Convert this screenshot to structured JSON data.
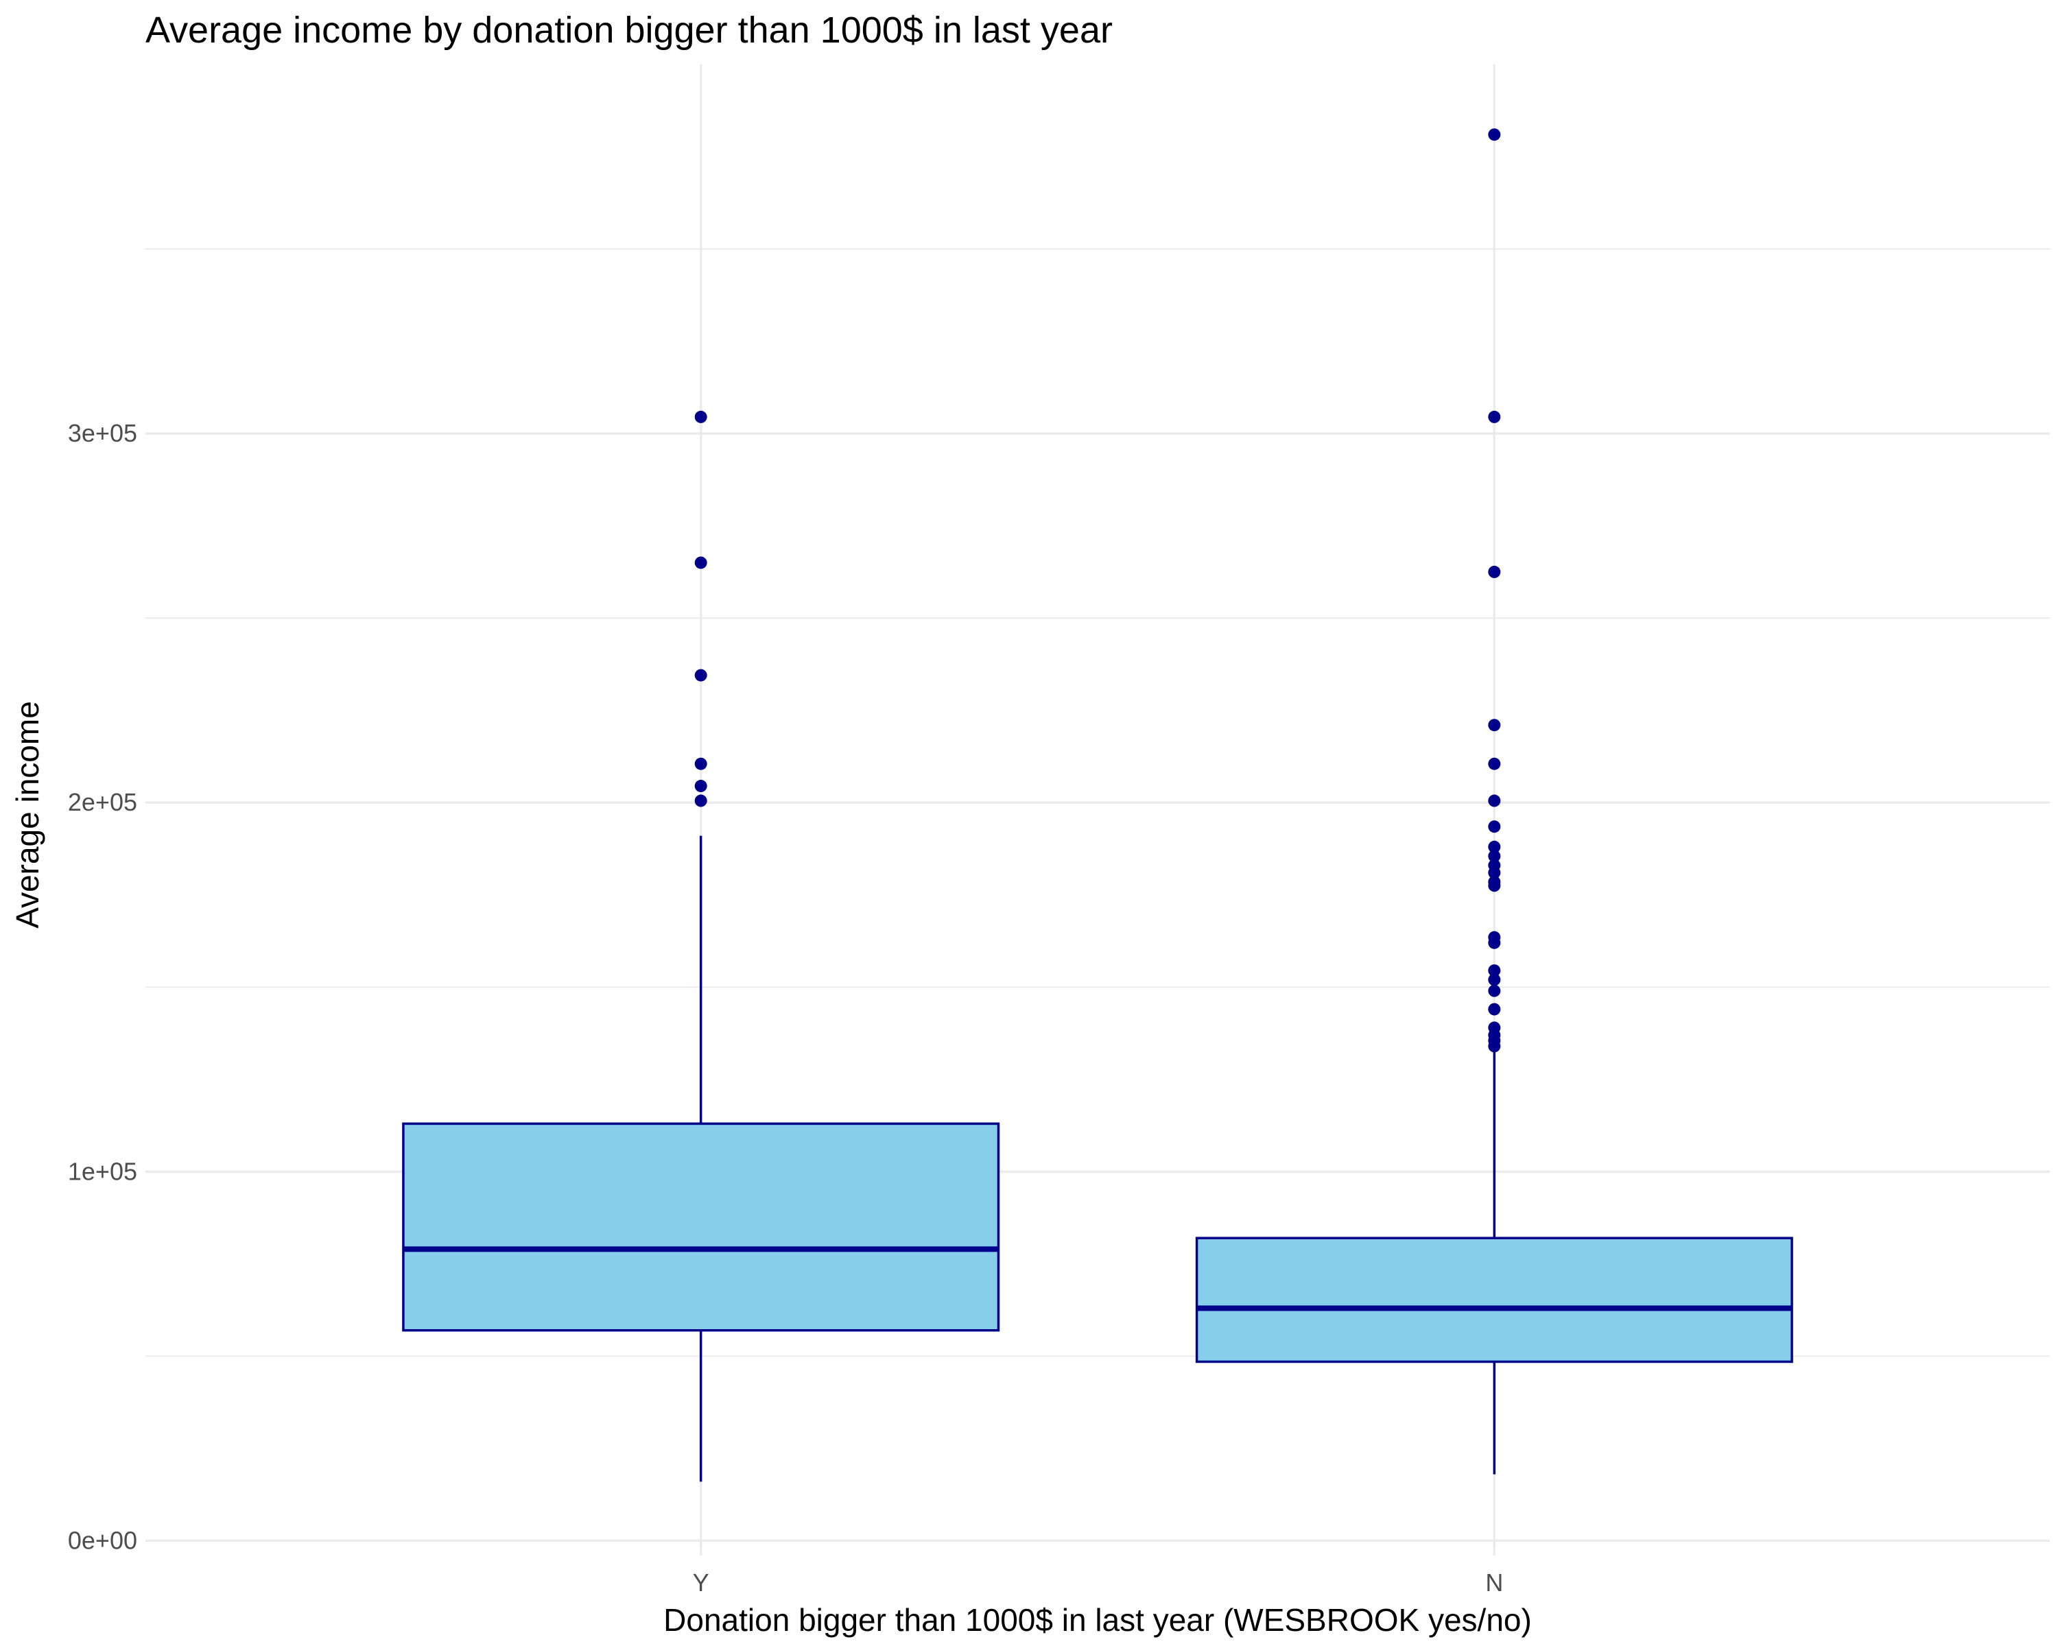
{
  "chart_data": {
    "type": "boxplot",
    "title": "Average income by donation bigger than 1000$ in last year",
    "xlabel": "Donation bigger than 1000$ in last year (WESBROOK yes/no)",
    "ylabel": "Average income",
    "categories": [
      "Y",
      "N"
    ],
    "y_ticks": [
      {
        "value": 0,
        "label": "0e+00"
      },
      {
        "value": 100000,
        "label": "1e+05"
      },
      {
        "value": 200000,
        "label": "2e+05"
      },
      {
        "value": 300000,
        "label": "3e+05"
      }
    ],
    "ylim": [
      -4000,
      400000
    ],
    "grid": true,
    "legend": "none",
    "colors": {
      "box_fill": "#87ceeb",
      "box_stroke": "#00008b",
      "outlier": "#00008b",
      "grid": "#ebebeb"
    },
    "boxes": [
      {
        "category": "Y",
        "whisker_low": 16000,
        "q1": 57000,
        "median": 79000,
        "q3": 113000,
        "whisker_high": 191000,
        "outliers": [
          200500,
          204500,
          210500,
          234500,
          265000,
          304500
        ]
      },
      {
        "category": "N",
        "whisker_low": 18000,
        "q1": 48500,
        "median": 63000,
        "q3": 82000,
        "whisker_high": 133000,
        "outliers": [
          134000,
          135500,
          137000,
          139000,
          144000,
          149000,
          152000,
          154500,
          162000,
          163500,
          177500,
          178500,
          181000,
          183000,
          185500,
          188000,
          193500,
          200500,
          210500,
          221000,
          262500,
          304500,
          381000
        ]
      }
    ]
  }
}
